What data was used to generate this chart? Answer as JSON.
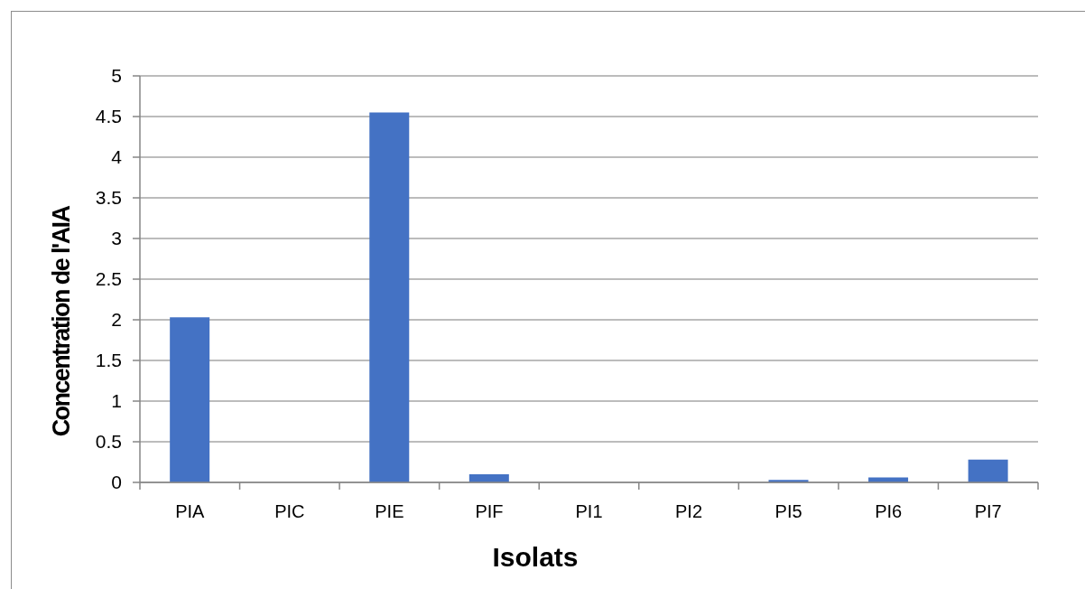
{
  "chart_data": {
    "type": "bar",
    "xlabel": "Isolats",
    "ylabel": "Concentration de l'AIA",
    "categories": [
      "PIA",
      "PIC",
      "PIE",
      "PIF",
      "PI1",
      "PI2",
      "PI5",
      "PI6",
      "PI7"
    ],
    "values": [
      2.03,
      0,
      4.55,
      0.1,
      0,
      0,
      0.03,
      0.06,
      0.28
    ],
    "color": "#4472c4",
    "ylim": [
      0,
      5
    ],
    "yticks": [
      0,
      0.5,
      1,
      1.5,
      2,
      2.5,
      3,
      3.5,
      4,
      4.5,
      5
    ],
    "grid": "y"
  }
}
